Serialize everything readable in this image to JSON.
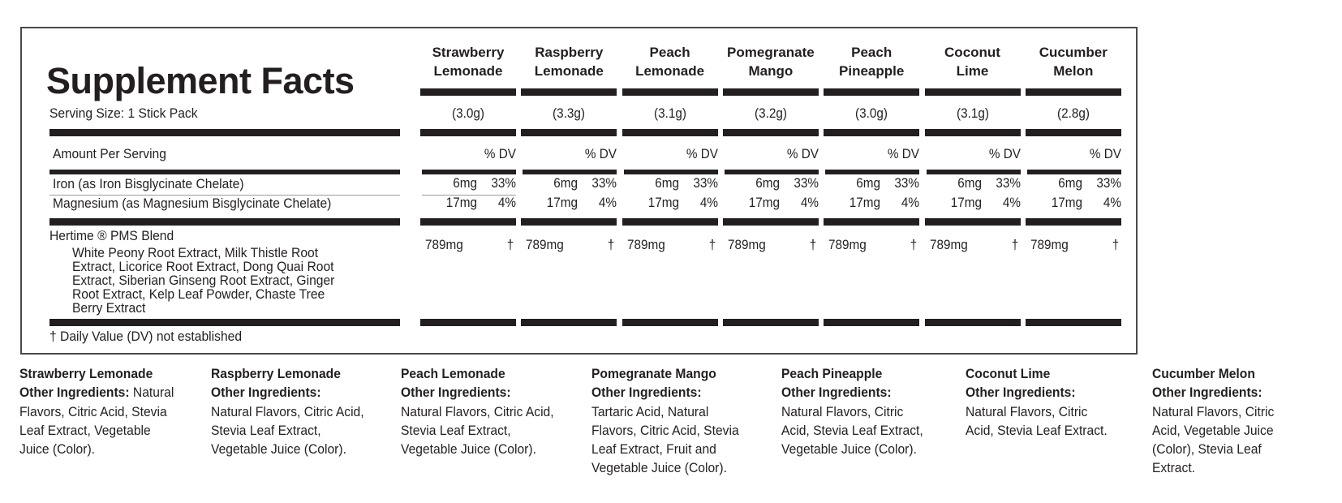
{
  "title": "Supplement Facts",
  "serving_size": "Serving Size: 1 Stick Pack",
  "amount_per_serving": "Amount Per Serving",
  "dv_label": "% DV",
  "nutrients": [
    {
      "name": "Iron (as Iron Bisglycinate Chelate)",
      "amount": "6mg",
      "dv": "33%"
    },
    {
      "name": "Magnesium (as Magnesium Bisglycinate Chelate)",
      "amount": "17mg",
      "dv": "4%"
    }
  ],
  "blend": {
    "name": "Hertime ® PMS Blend",
    "lines": [
      "White Peony Root Extract, Milk Thistle Root",
      "Extract, Licorice Root Extract, Dong Quai Root",
      "Extract, Siberian Ginseng Root Extract, Ginger",
      "Root Extract, Kelp Leaf Powder, Chaste Tree",
      "Berry Extract"
    ],
    "amount": "789mg",
    "dv": "†"
  },
  "footnote": "† Daily Value (DV) not established",
  "flavors": [
    {
      "header": [
        "Strawberry",
        "Lemonade"
      ],
      "serving": "(3.0g)"
    },
    {
      "header": [
        "Raspberry",
        "Lemonade"
      ],
      "serving": "(3.3g)"
    },
    {
      "header": [
        "Peach",
        "Lemonade"
      ],
      "serving": "(3.1g)"
    },
    {
      "header": [
        "Pomegranate",
        "Mango"
      ],
      "serving": "(3.2g)"
    },
    {
      "header": [
        "Peach",
        "Pineapple"
      ],
      "serving": "(3.0g)"
    },
    {
      "header": [
        "Coconut",
        "Lime"
      ],
      "serving": "(3.1g)"
    },
    {
      "header": [
        "Cucumber",
        "Melon"
      ],
      "serving": "(2.8g)"
    }
  ],
  "other_ingredients_label": "Other Ingredients:",
  "ingredients": [
    {
      "name": "Strawberry Lemonade",
      "inline": "Natural",
      "lines": [
        "Flavors, Citric Acid, Stevia",
        "Leaf Extract, Vegetable",
        "Juice (Color)."
      ]
    },
    {
      "name": "Raspberry Lemonade",
      "inline": "",
      "lines": [
        "Natural Flavors, Citric Acid,",
        "Stevia Leaf Extract,",
        "Vegetable Juice (Color)."
      ]
    },
    {
      "name": "Peach Lemonade",
      "inline": "",
      "lines": [
        "Natural Flavors, Citric Acid,",
        "Stevia Leaf Extract,",
        "Vegetable Juice (Color)."
      ]
    },
    {
      "name": "Pomegranate Mango",
      "inline": "",
      "lines": [
        "Tartaric Acid, Natural",
        "Flavors, Citric Acid, Stevia",
        "Leaf Extract, Fruit and",
        "Vegetable Juice (Color)."
      ]
    },
    {
      "name": "Peach Pineapple",
      "inline": "",
      "lines": [
        "Natural Flavors, Citric",
        "Acid, Stevia Leaf Extract,",
        "Vegetable Juice (Color)."
      ]
    },
    {
      "name": "Coconut Lime",
      "inline": "",
      "lines": [
        "Natural Flavors, Citric",
        "Acid, Stevia Leaf Extract."
      ]
    },
    {
      "name": "Cucumber Melon",
      "inline": "",
      "lines": [
        "Natural Flavors, Citric",
        "Acid, Vegetable Juice",
        "(Color), Stevia Leaf",
        "Extract."
      ]
    }
  ],
  "colors": {
    "ink": "#231f20",
    "border": "#4a4a4a"
  }
}
